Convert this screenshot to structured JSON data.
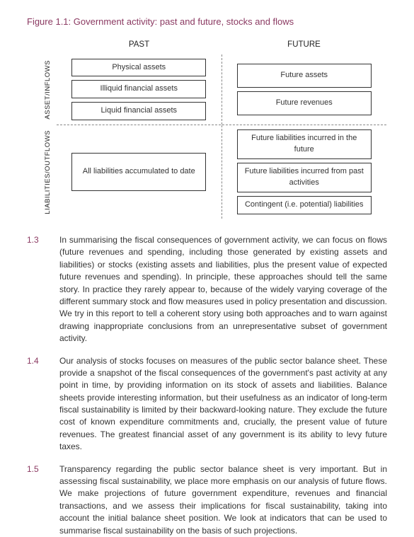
{
  "title_color": "#8b3a62",
  "para_num_color": "#8b3a62",
  "figure_title": "Figure 1.1: Government activity: past and future, stocks and flows",
  "headers": {
    "past": "PAST",
    "future": "FUTURE"
  },
  "row_labels": {
    "assets": "ASSET/INFLOWS",
    "liab": "LIABILITIES/OUTFLOWS"
  },
  "q": {
    "past_assets": [
      "Physical assets",
      "Illiquid financial assets",
      "Liquid financial assets"
    ],
    "future_assets": [
      "Future assets",
      "Future revenues"
    ],
    "past_liab": [
      "All liabilities accumulated to date"
    ],
    "future_liab": [
      "Future liabilities incurred in the future",
      "Future liabilities incurred from past activities",
      "Contingent (i.e. potential) liabilities"
    ]
  },
  "paras": [
    {
      "num": "1.3",
      "text": "In summarising the fiscal consequences of government activity, we can focus on flows (future revenues and spending, including those generated by existing assets and liabilities) or stocks (existing assets and liabilities, plus the present value of expected future revenues and spending). In principle, these approaches should tell the same story. In practice they rarely appear to, because of the widely varying coverage of the different summary stock and flow measures used in policy presentation and discussion. We try in this report to tell a coherent story using both approaches and to warn against drawing inappropriate conclusions from an unrepresentative subset of government activity."
    },
    {
      "num": "1.4",
      "text": "Our analysis of stocks focuses on measures of the public sector balance sheet. These provide a snapshot of the fiscal consequences of the government's past activity at any point in time, by providing information on its stock of assets and liabilities. Balance sheets provide interesting information, but their usefulness as an indicator of long-term fiscal sustainability is limited by their backward-looking nature. They exclude the future cost of known expenditure commitments and, crucially, the present value of future revenues. The greatest financial asset of any government is its ability to levy future taxes."
    },
    {
      "num": "1.5",
      "text": "Transparency regarding the public sector balance sheet is very important. But in assessing fiscal sustainability, we place more emphasis on our analysis of future flows. We make projections of future government expenditure, revenues and financial transactions, and we assess their implications for fiscal sustainability, taking into account the initial balance sheet position. We look at indicators that can be used to summarise fiscal sustainability on the basis of such projections."
    }
  ]
}
